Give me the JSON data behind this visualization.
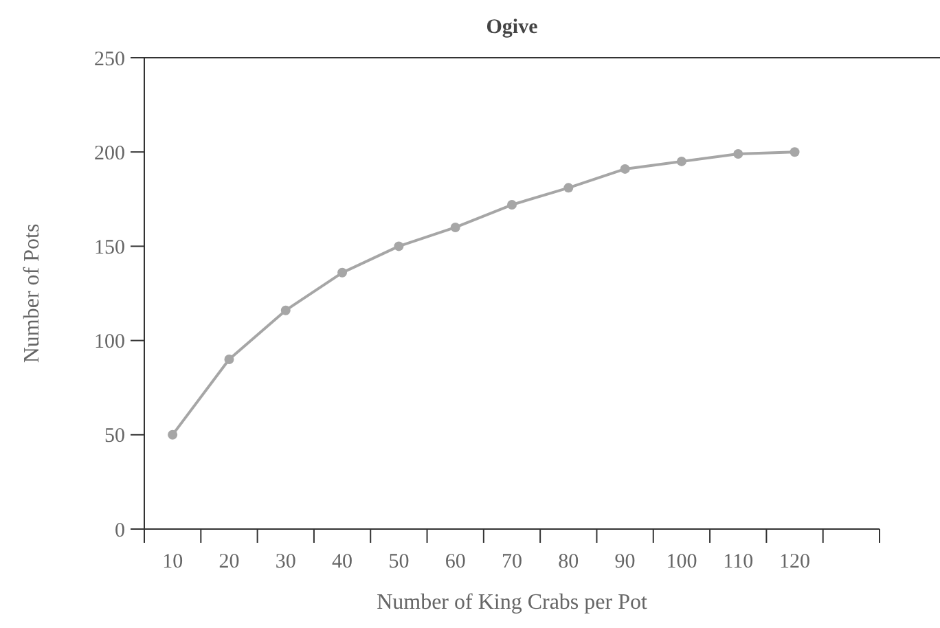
{
  "chart_data": {
    "type": "line",
    "title": "Ogive",
    "xlabel": "Number of King Crabs per Pot",
    "ylabel": "Number of Pots",
    "categories": [
      "10",
      "20",
      "30",
      "40",
      "50",
      "60",
      "70",
      "80",
      "90",
      "100",
      "110",
      "120",
      null
    ],
    "series": [
      {
        "color": "#a6a6a6",
        "values": [
          50,
          90,
          116,
          136,
          150,
          160,
          172,
          181,
          191,
          195,
          199,
          200,
          null
        ]
      }
    ],
    "ylim": [
      0,
      250
    ],
    "yticks": [
      0,
      50,
      100,
      150,
      200,
      250
    ],
    "marker": "circle",
    "line_style": "solid",
    "grid": false
  }
}
